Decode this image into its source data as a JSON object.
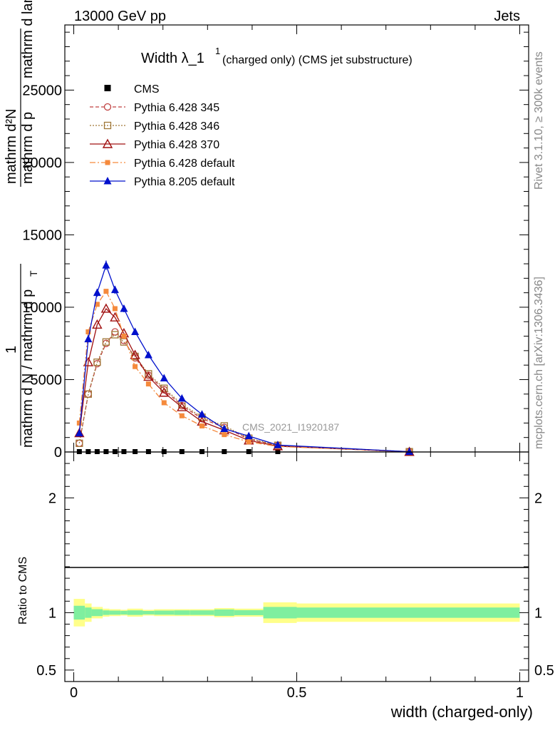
{
  "header": {
    "energy": "13000 GeV pp",
    "process": "Jets",
    "rivet": "Rivet 3.1.10, ≥ 300k events",
    "url": "mcplots.cern.ch [arXiv:1306.3436]",
    "analysis": "CMS_2021_I1920187"
  },
  "colors": {
    "cms": "#000000",
    "p345": "#c04040",
    "p346": "#a07838",
    "p370": "#a01010",
    "p6def": "#f58a3c",
    "p8": "#0010cc",
    "band_inner": "#7fef9f",
    "band_outer": "#ffff8a"
  },
  "chart_data": [
    {
      "type": "line",
      "title_main": "Width λ_1",
      "title_sup": "1",
      "title_rest": "(charged only) (CMS jet substructure)",
      "ylabel_lines": [
        "mathrm d²N",
        "mathrm d p",
        "mathrm d lambda",
        "1",
        "mathrm d N / mathrm d p"
      ],
      "ylabel_sub": "T",
      "ylabel_T": "T",
      "xlim": [
        -0.02,
        1.02
      ],
      "ylim": [
        0,
        29500
      ],
      "yticks": [
        0,
        5000,
        10000,
        15000,
        20000,
        25000
      ],
      "ytick_labels": [
        "0",
        "5000",
        "10000",
        "15000",
        "20000",
        "25000"
      ],
      "x": [
        0.0125,
        0.0325,
        0.0525,
        0.0725,
        0.0925,
        0.1125,
        0.1375,
        0.1675,
        0.2025,
        0.2425,
        0.2875,
        0.3375,
        0.3925,
        0.4575,
        0.7525
      ],
      "cms": [
        0,
        0,
        0,
        0,
        0,
        0,
        0,
        0,
        0,
        0,
        0,
        0,
        0,
        0,
        0
      ],
      "series": [
        {
          "key": "p345",
          "name": "Pythia 6.428 345",
          "marker": "circle",
          "dash": "5,3",
          "values": [
            600,
            4000,
            6100,
            7500,
            8300,
            7700,
            6500,
            5300,
            4300,
            3200,
            2300,
            1700,
            900,
            450,
            20
          ]
        },
        {
          "key": "p346",
          "name": "Pythia 6.428 346",
          "marker": "square",
          "dash": "2,2",
          "values": [
            600,
            4000,
            6200,
            7600,
            8100,
            7600,
            6600,
            5400,
            4400,
            3300,
            2400,
            1800,
            950,
            460,
            20
          ]
        },
        {
          "key": "p370",
          "name": "Pythia 6.428 370",
          "marker": "triangle-open",
          "dash": "",
          "values": [
            1300,
            6200,
            8800,
            9900,
            9300,
            8200,
            6700,
            5200,
            4100,
            3100,
            2100,
            1500,
            800,
            400,
            10
          ]
        },
        {
          "key": "p6def",
          "name": "Pythia 6.428 default",
          "marker": "square-filled",
          "dash": "8,3,2,3",
          "values": [
            2000,
            8300,
            10200,
            11100,
            9900,
            8000,
            5900,
            4700,
            3400,
            2500,
            1800,
            1200,
            700,
            380,
            20
          ]
        },
        {
          "key": "p8",
          "name": "Pythia 8.205 default",
          "marker": "triangle-filled",
          "dash": "",
          "values": [
            1300,
            7800,
            11000,
            12900,
            11200,
            9900,
            8300,
            6700,
            5100,
            3700,
            2600,
            1600,
            1100,
            480,
            20
          ]
        }
      ],
      "legend_cms": "CMS",
      "legend_position": "top-left"
    },
    {
      "type": "area",
      "ylabel": "Ratio to CMS",
      "xlabel": "width (charged-only)",
      "xlim": [
        -0.02,
        1.02
      ],
      "ylim": [
        0.4,
        2.4
      ],
      "yticks": [
        0.5,
        1,
        2
      ],
      "ytick_labels": [
        "0.5",
        "1",
        "2"
      ],
      "xticks": [
        0,
        0.5,
        1
      ],
      "xtick_labels": [
        "0",
        "0.5",
        "1"
      ],
      "bin_edges": [
        0.0,
        0.025,
        0.04,
        0.065,
        0.08,
        0.105,
        0.12,
        0.155,
        0.18,
        0.225,
        0.26,
        0.315,
        0.36,
        0.425,
        0.5,
        1.0
      ],
      "inner_half": [
        0.06,
        0.045,
        0.03,
        0.02,
        0.018,
        0.016,
        0.02,
        0.015,
        0.018,
        0.02,
        0.02,
        0.028,
        0.022,
        0.05,
        0.045
      ],
      "outer_half": [
        0.12,
        0.08,
        0.05,
        0.035,
        0.03,
        0.025,
        0.035,
        0.025,
        0.03,
        0.03,
        0.03,
        0.04,
        0.035,
        0.09,
        0.08
      ]
    }
  ]
}
